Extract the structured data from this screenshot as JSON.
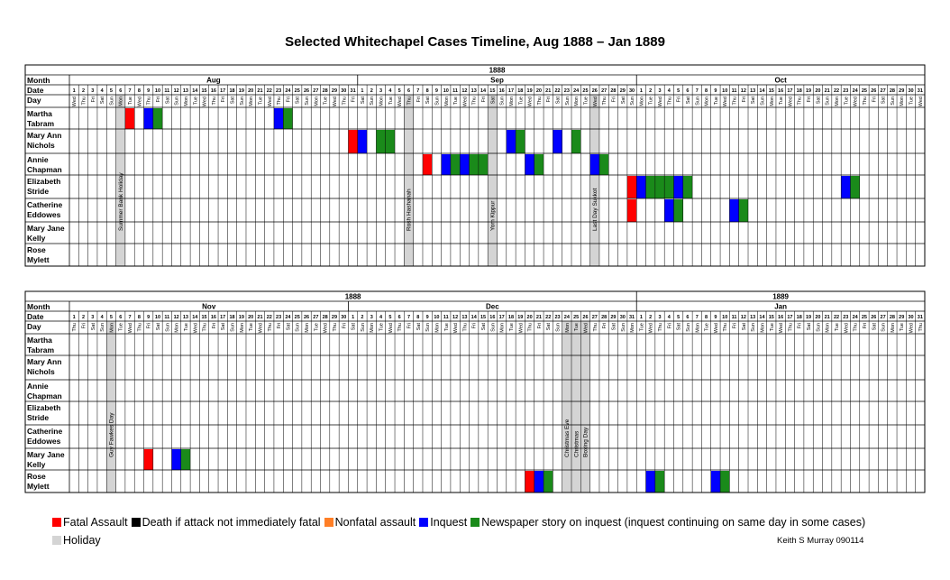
{
  "title": "Selected Whitechapel Cases Timeline, Aug 1888 – Jan 1889",
  "credit": "Keith S Murray 090114",
  "row_labels": {
    "month": "Month",
    "date": "Date",
    "day": "Day"
  },
  "legend": {
    "items": [
      {
        "label": "Fatal Assault",
        "color": "#ff0000"
      },
      {
        "label": "Death if attack not immediately fatal",
        "color": "#000000"
      },
      {
        "label": "Nonfatal assault",
        "color": "#ff7f27"
      },
      {
        "label": "Inquest",
        "color": "#0000ff"
      },
      {
        "label": "Newspaper story on inquest (inquest continuing on same day in some cases)",
        "color": "#1a8a1a"
      }
    ],
    "holiday": {
      "label": "Holiday",
      "color": "#d4d4d4"
    }
  },
  "chart_data": {
    "type": "table",
    "victims": [
      {
        "line1": "Martha",
        "line2": "Tabram"
      },
      {
        "line1": "Mary Ann",
        "line2": "Nichols"
      },
      {
        "line1": "Annie",
        "line2": "Chapman"
      },
      {
        "line1": "Elizabeth",
        "line2": "Stride"
      },
      {
        "line1": "Catherine",
        "line2": "Eddowes"
      },
      {
        "line1": "Mary Jane",
        "line2": "Kelly"
      },
      {
        "line1": "Rose",
        "line2": "Mylett"
      }
    ],
    "weekdays": [
      "Mon",
      "Tue",
      "Wed",
      "Thu",
      "Fri",
      "Sat",
      "Sun"
    ],
    "panels": [
      {
        "year_groups": [
          {
            "label": "1888",
            "months": [
              "Aug",
              "Sep",
              "Oct"
            ]
          }
        ],
        "months": [
          {
            "name": "Aug",
            "days": 31,
            "first_weekday": "Wed"
          },
          {
            "name": "Sep",
            "days": 30,
            "first_weekday": "Sat"
          },
          {
            "name": "Oct",
            "days": 31,
            "first_weekday": "Mon"
          }
        ],
        "holidays": [
          {
            "month": "Aug",
            "day": 6,
            "label": "Summer Bank Holiday"
          },
          {
            "month": "Sep",
            "day": 6,
            "label": "Rosh Hashanah"
          },
          {
            "month": "Sep",
            "day": 15,
            "label": "Yom Kippur"
          },
          {
            "month": "Sep",
            "day": 26,
            "label": "Last Day Sukkot"
          }
        ],
        "events": [
          {
            "victim": "Martha Tabram",
            "month": "Aug",
            "day": 7,
            "type": "Fatal Assault"
          },
          {
            "victim": "Martha Tabram",
            "month": "Aug",
            "day": 9,
            "type": "Inquest"
          },
          {
            "victim": "Martha Tabram",
            "month": "Aug",
            "day": 10,
            "type": "Newspaper"
          },
          {
            "victim": "Martha Tabram",
            "month": "Aug",
            "day": 23,
            "type": "Inquest"
          },
          {
            "victim": "Martha Tabram",
            "month": "Aug",
            "day": 24,
            "type": "Newspaper"
          },
          {
            "victim": "Mary Ann Nichols",
            "month": "Aug",
            "day": 31,
            "type": "Fatal Assault"
          },
          {
            "victim": "Mary Ann Nichols",
            "month": "Sep",
            "day": 1,
            "type": "Inquest"
          },
          {
            "victim": "Mary Ann Nichols",
            "month": "Sep",
            "day": 3,
            "type": "Newspaper"
          },
          {
            "victim": "Mary Ann Nichols",
            "month": "Sep",
            "day": 4,
            "type": "Newspaper"
          },
          {
            "victim": "Mary Ann Nichols",
            "month": "Sep",
            "day": 17,
            "type": "Inquest"
          },
          {
            "victim": "Mary Ann Nichols",
            "month": "Sep",
            "day": 18,
            "type": "Newspaper"
          },
          {
            "victim": "Mary Ann Nichols",
            "month": "Sep",
            "day": 22,
            "type": "Inquest"
          },
          {
            "victim": "Mary Ann Nichols",
            "month": "Sep",
            "day": 24,
            "type": "Newspaper"
          },
          {
            "victim": "Annie Chapman",
            "month": "Sep",
            "day": 8,
            "type": "Fatal Assault"
          },
          {
            "victim": "Annie Chapman",
            "month": "Sep",
            "day": 10,
            "type": "Inquest"
          },
          {
            "victim": "Annie Chapman",
            "month": "Sep",
            "day": 11,
            "type": "Newspaper"
          },
          {
            "victim": "Annie Chapman",
            "month": "Sep",
            "day": 12,
            "type": "Inquest"
          },
          {
            "victim": "Annie Chapman",
            "month": "Sep",
            "day": 13,
            "type": "Newspaper"
          },
          {
            "victim": "Annie Chapman",
            "month": "Sep",
            "day": 14,
            "type": "Newspaper"
          },
          {
            "victim": "Annie Chapman",
            "month": "Sep",
            "day": 19,
            "type": "Inquest"
          },
          {
            "victim": "Annie Chapman",
            "month": "Sep",
            "day": 20,
            "type": "Newspaper"
          },
          {
            "victim": "Annie Chapman",
            "month": "Sep",
            "day": 26,
            "type": "Inquest"
          },
          {
            "victim": "Annie Chapman",
            "month": "Sep",
            "day": 27,
            "type": "Newspaper"
          },
          {
            "victim": "Elizabeth Stride",
            "month": "Sep",
            "day": 30,
            "type": "Fatal Assault"
          },
          {
            "victim": "Elizabeth Stride",
            "month": "Oct",
            "day": 1,
            "type": "Inquest"
          },
          {
            "victim": "Elizabeth Stride",
            "month": "Oct",
            "day": 2,
            "type": "Newspaper"
          },
          {
            "victim": "Elizabeth Stride",
            "month": "Oct",
            "day": 3,
            "type": "Newspaper"
          },
          {
            "victim": "Elizabeth Stride",
            "month": "Oct",
            "day": 4,
            "type": "Newspaper"
          },
          {
            "victim": "Elizabeth Stride",
            "month": "Oct",
            "day": 5,
            "type": "Inquest"
          },
          {
            "victim": "Elizabeth Stride",
            "month": "Oct",
            "day": 6,
            "type": "Newspaper"
          },
          {
            "victim": "Elizabeth Stride",
            "month": "Oct",
            "day": 23,
            "type": "Inquest"
          },
          {
            "victim": "Elizabeth Stride",
            "month": "Oct",
            "day": 24,
            "type": "Newspaper"
          },
          {
            "victim": "Catherine Eddowes",
            "month": "Sep",
            "day": 30,
            "type": "Fatal Assault"
          },
          {
            "victim": "Catherine Eddowes",
            "month": "Oct",
            "day": 4,
            "type": "Inquest"
          },
          {
            "victim": "Catherine Eddowes",
            "month": "Oct",
            "day": 5,
            "type": "Newspaper"
          },
          {
            "victim": "Catherine Eddowes",
            "month": "Oct",
            "day": 11,
            "type": "Inquest"
          },
          {
            "victim": "Catherine Eddowes",
            "month": "Oct",
            "day": 12,
            "type": "Newspaper"
          }
        ]
      },
      {
        "year_groups": [
          {
            "label": "1888",
            "months": [
              "Nov",
              "Dec"
            ]
          },
          {
            "label": "1889",
            "months": [
              "Jan"
            ]
          }
        ],
        "months": [
          {
            "name": "Nov",
            "days": 30,
            "first_weekday": "Thu"
          },
          {
            "name": "Dec",
            "days": 31,
            "first_weekday": "Sat"
          },
          {
            "name": "Jan",
            "days": 31,
            "first_weekday": "Tue"
          }
        ],
        "holidays": [
          {
            "month": "Nov",
            "day": 5,
            "label": "Guy Fawkes Day"
          },
          {
            "month": "Dec",
            "day": 24,
            "label": "Christmas Eve"
          },
          {
            "month": "Dec",
            "day": 25,
            "label": "Christmas"
          },
          {
            "month": "Dec",
            "day": 26,
            "label": "Boxing Day"
          }
        ],
        "events": [
          {
            "victim": "Mary Jane Kelly",
            "month": "Nov",
            "day": 9,
            "type": "Fatal Assault"
          },
          {
            "victim": "Mary Jane Kelly",
            "month": "Nov",
            "day": 12,
            "type": "Inquest"
          },
          {
            "victim": "Mary Jane Kelly",
            "month": "Nov",
            "day": 13,
            "type": "Newspaper"
          },
          {
            "victim": "Rose Mylett",
            "month": "Dec",
            "day": 20,
            "type": "Fatal Assault"
          },
          {
            "victim": "Rose Mylett",
            "month": "Dec",
            "day": 21,
            "type": "Inquest"
          },
          {
            "victim": "Rose Mylett",
            "month": "Dec",
            "day": 22,
            "type": "Newspaper"
          },
          {
            "victim": "Rose Mylett",
            "month": "Jan",
            "day": 2,
            "type": "Inquest"
          },
          {
            "victim": "Rose Mylett",
            "month": "Jan",
            "day": 3,
            "type": "Newspaper"
          },
          {
            "victim": "Rose Mylett",
            "month": "Jan",
            "day": 9,
            "type": "Inquest"
          },
          {
            "victim": "Rose Mylett",
            "month": "Jan",
            "day": 10,
            "type": "Newspaper"
          }
        ]
      }
    ]
  }
}
